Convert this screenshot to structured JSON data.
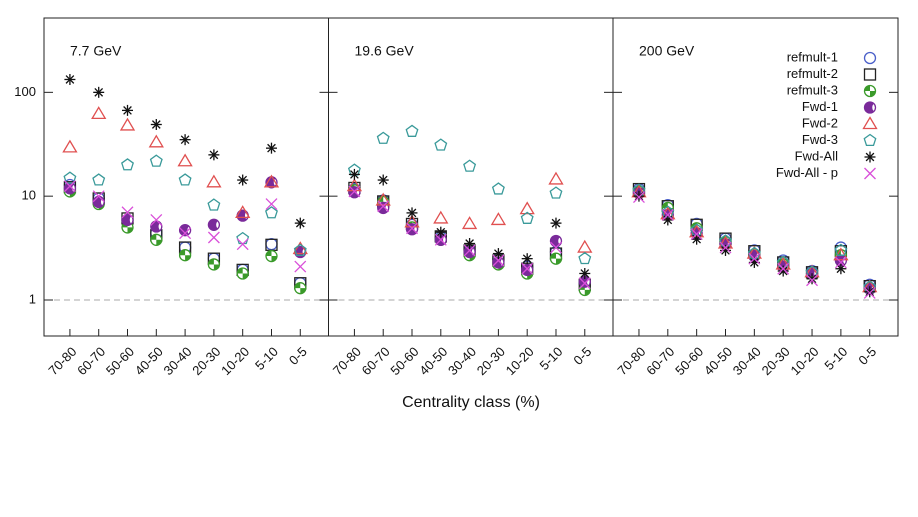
{
  "chart_data": [
    {
      "type": "scatter",
      "annotation": "7.7 GeV",
      "log_scale": true,
      "ylim": [
        0.45,
        520
      ],
      "yticks": [
        1,
        10,
        100
      ],
      "ytick_labels": true,
      "hline": 1,
      "categories": [
        "70-80",
        "60-70",
        "50-60",
        "40-50",
        "30-40",
        "20-30",
        "10-20",
        "5-10",
        "0-5"
      ],
      "series": [
        {
          "color": "#4a5fc9",
          "marker": "circle",
          "values": [
            12.8,
            9.5,
            5.9,
            4.4,
            3.2,
            2.5,
            1.95,
            3.45,
            1.45
          ]
        },
        {
          "color": "#222222",
          "marker": "square",
          "values": [
            12.2,
            9.5,
            6.1,
            4.2,
            3.2,
            2.5,
            1.95,
            3.4,
            1.45
          ]
        },
        {
          "color": "#3a9a2a",
          "marker": "quarters",
          "values": [
            11.1,
            8.4,
            5.0,
            3.8,
            2.7,
            2.2,
            1.8,
            2.65,
            1.3
          ]
        },
        {
          "color": "#7a2a9a",
          "marker": "half",
          "values": [
            11.9,
            8.8,
            5.9,
            5.1,
            4.7,
            5.3,
            6.5,
            13.6,
            2.9
          ]
        },
        {
          "color": "#e05050",
          "marker": "triangle",
          "values": [
            29.5,
            62,
            48,
            33,
            21.7,
            13.6,
            6.9,
            13.6,
            3.1
          ]
        },
        {
          "color": "#3a9a9a",
          "marker": "pentagon",
          "values": [
            14.9,
            14.3,
            20,
            21.7,
            14.3,
            8.2,
            3.9,
            6.9,
            3.0
          ]
        },
        {
          "color": "#111111",
          "marker": "asterisk",
          "values": [
            133,
            100,
            67,
            49,
            35,
            25,
            14.3,
            29,
            5.5
          ]
        },
        {
          "color": "#d94fd9",
          "marker": "cross",
          "values": [
            12.5,
            10,
            7,
            5.9,
            4.4,
            4.0,
            3.45,
            8.4,
            2.1
          ]
        }
      ]
    },
    {
      "type": "scatter",
      "annotation": "19.6 GeV",
      "xlabel": "Centrality class (%)",
      "log_scale": true,
      "ylim": [
        0.45,
        520
      ],
      "yticks": [
        1,
        10,
        100
      ],
      "ytick_labels": false,
      "hline": 1,
      "categories": [
        "70-80",
        "60-70",
        "50-60",
        "40-50",
        "30-40",
        "20-30",
        "10-20",
        "5-10",
        "0-5"
      ],
      "series": [
        {
          "color": "#4a5fc9",
          "marker": "circle",
          "values": [
            11.7,
            9.1,
            5.3,
            4.0,
            3.0,
            2.5,
            2.1,
            2.9,
            1.45
          ]
        },
        {
          "color": "#222222",
          "marker": "square",
          "values": [
            12.0,
            8.9,
            5.4,
            4.1,
            3.0,
            2.4,
            2.0,
            2.8,
            1.4
          ]
        },
        {
          "color": "#3a9a2a",
          "marker": "quarters",
          "values": [
            11.4,
            8.8,
            5.0,
            3.8,
            2.7,
            2.2,
            1.8,
            2.5,
            1.25
          ]
        },
        {
          "color": "#7a2a9a",
          "marker": "half",
          "values": [
            10.9,
            7.7,
            4.8,
            3.8,
            2.9,
            2.3,
            1.95,
            3.7,
            1.5
          ]
        },
        {
          "color": "#e05050",
          "marker": "triangle",
          "values": [
            12.5,
            9.1,
            5.6,
            6.1,
            5.4,
            5.9,
            7.5,
            14.5,
            3.2
          ]
        },
        {
          "color": "#3a9a9a",
          "marker": "pentagon",
          "values": [
            17.8,
            36,
            42,
            31,
            19.4,
            11.7,
            6.1,
            10.7,
            2.5
          ]
        },
        {
          "color": "#111111",
          "marker": "asterisk",
          "values": [
            16.2,
            14.3,
            6.9,
            4.5,
            3.5,
            2.8,
            2.5,
            5.5,
            1.8
          ]
        },
        {
          "color": "#d94fd9",
          "marker": "cross",
          "values": [
            11.1,
            8.0,
            4.9,
            3.8,
            3.0,
            2.4,
            2.0,
            3.2,
            1.45
          ]
        }
      ]
    },
    {
      "type": "scatter",
      "annotation": "200 GeV",
      "log_scale": true,
      "ylim": [
        0.45,
        520
      ],
      "yticks": [
        1,
        10,
        100
      ],
      "ytick_labels": false,
      "hline": 1,
      "legend": "upper right",
      "categories": [
        "70-80",
        "60-70",
        "50-60",
        "40-50",
        "30-40",
        "20-30",
        "10-20",
        "5-10",
        "0-5"
      ],
      "series": [
        {
          "name": "refmult-1",
          "color": "#4a5fc9",
          "marker": "circle",
          "values": [
            11.7,
            8.2,
            5.4,
            3.9,
            3.0,
            2.4,
            1.9,
            3.2,
            1.4
          ]
        },
        {
          "name": "refmult-2",
          "color": "#222222",
          "marker": "square",
          "values": [
            11.7,
            8.0,
            5.3,
            3.9,
            2.95,
            2.3,
            1.85,
            2.95,
            1.36
          ]
        },
        {
          "name": "refmult-3",
          "color": "#3a9a2a",
          "marker": "quarters",
          "values": [
            11.1,
            7.7,
            4.9,
            3.6,
            2.75,
            2.2,
            1.8,
            2.7,
            1.3
          ]
        },
        {
          "name": "Fwd-1",
          "color": "#7a2a9a",
          "marker": "half",
          "values": [
            10.7,
            6.6,
            4.4,
            3.45,
            2.65,
            2.1,
            1.8,
            2.4,
            1.28
          ]
        },
        {
          "name": "Fwd-2",
          "color": "#e05050",
          "marker": "triangle",
          "values": [
            10.9,
            6.7,
            4.5,
            3.5,
            2.8,
            2.2,
            1.85,
            2.7,
            1.33
          ]
        },
        {
          "name": "Fwd-3",
          "color": "#3a9a9a",
          "marker": "pentagon",
          "values": [
            11.4,
            7.0,
            4.7,
            3.7,
            2.8,
            2.3,
            1.85,
            3.0,
            1.33
          ]
        },
        {
          "name": "Fwd-All",
          "color": "#111111",
          "marker": "asterisk",
          "values": [
            10.0,
            5.9,
            3.85,
            3.0,
            2.3,
            1.9,
            1.6,
            2.0,
            1.2
          ]
        },
        {
          "name": "Fwd-All - p",
          "color": "#d94fd9",
          "marker": "cross",
          "values": [
            9.8,
            6.6,
            4.3,
            3.2,
            2.5,
            2.0,
            1.55,
            2.3,
            1.17
          ]
        }
      ]
    }
  ]
}
